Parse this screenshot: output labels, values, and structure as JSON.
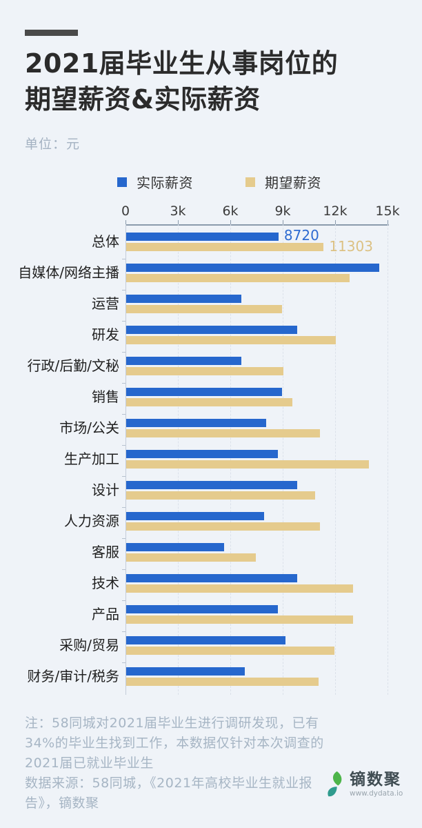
{
  "header": {
    "title_line1": "2021届毕业生从事岗位的",
    "title_line2": "期望薪资&实际薪资",
    "unit_label": "单位：元"
  },
  "legend": [
    {
      "label": "实际薪资",
      "color": "#2667cd"
    },
    {
      "label": "期望薪资",
      "color": "#e5cb8d"
    }
  ],
  "chart_data": {
    "type": "bar",
    "orientation": "horizontal",
    "title": "2021届毕业生从事岗位的期望薪资&实际薪资",
    "value_unit": "元",
    "xlim": [
      0,
      15000
    ],
    "x_ticks": [
      "0",
      "3k",
      "6k",
      "9k",
      "12k",
      "15k"
    ],
    "grid": "dashed-vertical",
    "legend_position": "top",
    "categories": [
      "总体",
      "自媒体/网络主播",
      "运营",
      "研发",
      "行政/后勤/文秘",
      "销售",
      "市场/公关",
      "生产加工",
      "设计",
      "人力资源",
      "客服",
      "技术",
      "产品",
      "采购/贸易",
      "财务/审计/税务"
    ],
    "series": [
      {
        "name": "实际薪资",
        "color": "#2667cd",
        "values": [
          8720,
          14500,
          6600,
          9800,
          6600,
          8900,
          8000,
          8700,
          9800,
          7900,
          5600,
          9800,
          8700,
          9100,
          6800
        ]
      },
      {
        "name": "期望薪资",
        "color": "#e5cb8d",
        "values": [
          11303,
          12800,
          8900,
          12000,
          9000,
          9500,
          11100,
          13900,
          10800,
          11100,
          7400,
          13000,
          13000,
          11900,
          11000
        ]
      }
    ],
    "data_labels": {
      "shown_for": "总体",
      "actual": "8720",
      "expected": "11303",
      "actual_color": "#2e6bd1",
      "expected_color": "#dcc183"
    }
  },
  "footer": {
    "note_lines": [
      "注：58同城对2021届毕业生进行调研发现，已有",
      "34%的毕业生找到工作，本数据仅针对本次调查的",
      "2021届已就业毕业生",
      "数据来源：58同城，《2021年高校毕业生就业报",
      "告》，镝数聚"
    ],
    "logo": {
      "name": "镝数聚",
      "url": "www.dydata.io"
    }
  },
  "colors": {
    "background": "#eff3f8",
    "title": "#2b2b2b",
    "muted_text": "#a6b5c4",
    "axis": "#8a9aac"
  }
}
